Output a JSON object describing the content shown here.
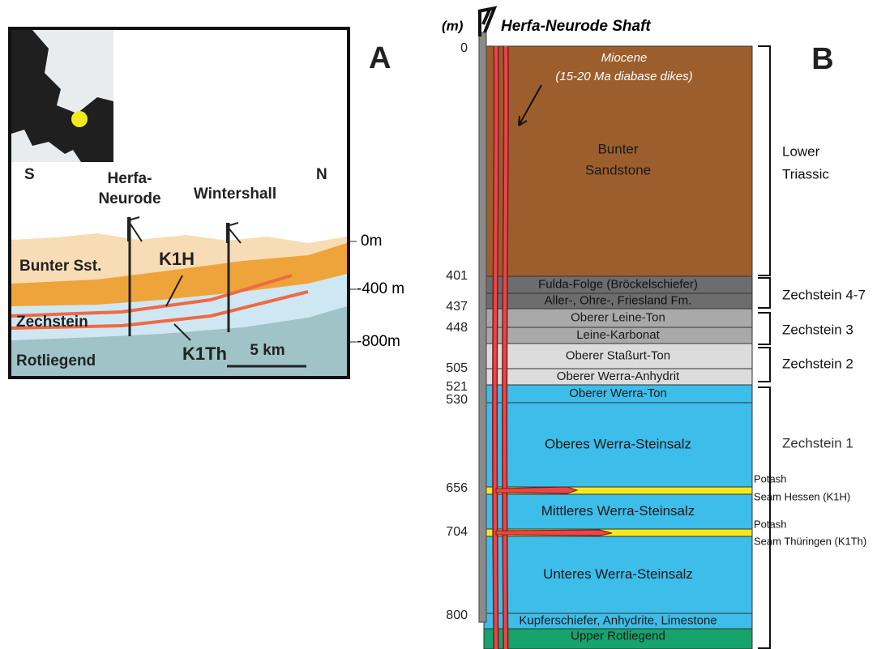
{
  "panel_a": {
    "label": "A",
    "south": "S",
    "north": "N",
    "shaft_1": [
      "Herfa-",
      "Neurode"
    ],
    "shaft_2": "Wintershall",
    "units": {
      "bunter": "Bunter Sst.",
      "zechstein": "Zechstein",
      "rotliegend": "Rotliegend"
    },
    "seams": {
      "k1h": "K1H",
      "k1th": "K1Th"
    },
    "depths": [
      "0m",
      "-400 m",
      "-800m"
    ],
    "scale": "5 km"
  },
  "panel_b": {
    "label": "B",
    "unit_label": "(m)",
    "title": "Herfa-Neurode Shaft",
    "dikes": [
      "Miocene",
      "(15-20 Ma diabase dikes)"
    ],
    "depths": [
      0,
      401,
      437,
      448,
      505,
      521,
      530,
      656,
      704,
      800
    ],
    "layers": [
      {
        "lines": [
          "Bunter",
          "Sandstone"
        ],
        "color": "#9c5e2d"
      },
      {
        "lines": [
          "Fulda-Folge (Bröckelschiefer)"
        ],
        "color": "#6d6d6d"
      },
      {
        "lines": [
          "Aller-, Ohre-, Friesland Fm."
        ],
        "color": "#6d6d6d"
      },
      {
        "lines": [
          "Oberer Leine-Ton"
        ],
        "color": "#a9a9a9"
      },
      {
        "lines": [
          "Leine-Karbonat"
        ],
        "color": "#a9a9a9"
      },
      {
        "lines": [
          "Oberer Staßurt-Ton"
        ],
        "color": "#dcdcdc"
      },
      {
        "lines": [
          "Oberer Werra-Anhydrit"
        ],
        "color": "#dcdcdc"
      },
      {
        "lines": [
          "Oberer Werra-Ton"
        ],
        "color": "#3dbde9"
      },
      {
        "lines": [
          "Oberes Werra-Steinsalz"
        ],
        "color": "#3dbde9"
      },
      {
        "lines": [
          "Mittleres Werra-Steinsalz"
        ],
        "color": "#3dbde9"
      },
      {
        "lines": [
          "Unteres Werra-Steinsalz"
        ],
        "color": "#3dbde9"
      },
      {
        "lines": [
          "Kupferschiefer, Anhydrite, Limestone"
        ],
        "color": "#3dbde9"
      },
      {
        "lines": [
          "Upper Rotliegend"
        ],
        "color": "#17a36c"
      }
    ],
    "groups": [
      {
        "lines": [
          "Lower",
          "Triassic"
        ]
      },
      {
        "lines": [
          "Zechstein 4-7"
        ]
      },
      {
        "lines": [
          "Zechstein 3"
        ]
      },
      {
        "lines": [
          "Zechstein 2"
        ]
      },
      {
        "lines": [
          "Zechstein 1"
        ]
      }
    ],
    "potash": [
      [
        "Potash",
        "Seam Hessen (K1H)"
      ],
      [
        "Potash",
        "Seam Thüringen (K1Th)"
      ]
    ]
  }
}
